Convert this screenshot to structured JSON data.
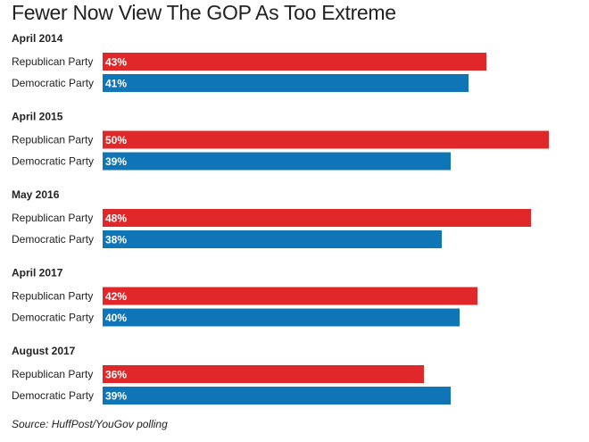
{
  "title": "Fewer Now View The GOP As Too Extreme",
  "source": "Source: HuffPost/YouGov polling",
  "colors": {
    "republican": "#e0282a",
    "democratic": "#1075b7"
  },
  "chart_data": {
    "type": "bar",
    "orientation": "horizontal",
    "title": "Fewer Now View The GOP As Too Extreme",
    "groups": [
      "April 2014",
      "April 2015",
      "May 2016",
      "April 2017",
      "August 2017"
    ],
    "series": [
      {
        "name": "Republican Party",
        "values": [
          43,
          50,
          48,
          42,
          36
        ],
        "color": "#e0282a"
      },
      {
        "name": "Democratic Party",
        "values": [
          41,
          39,
          38,
          40,
          39
        ],
        "color": "#1075b7"
      }
    ],
    "value_suffix": "%",
    "grid": false
  }
}
